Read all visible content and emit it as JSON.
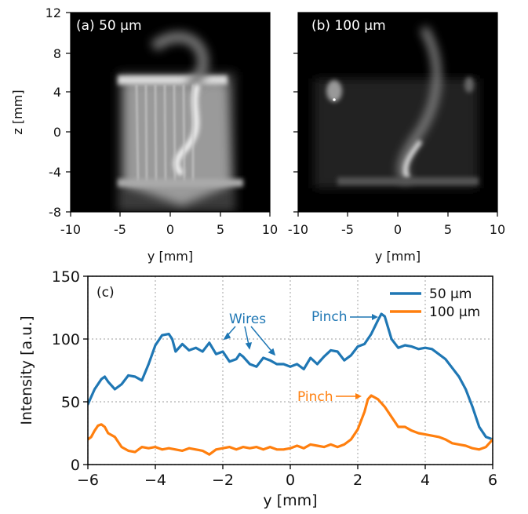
{
  "panels": {
    "a": {
      "label": "(a) 50 µm"
    },
    "b": {
      "label": "(b) 100 µm"
    },
    "image_axes": {
      "xlabel": "y [mm]",
      "ylabel": "z [mm]",
      "x_ticks": [
        "-10",
        "-5",
        "0",
        "5",
        "10"
      ],
      "y_ticks": [
        "12",
        "8",
        "4",
        "0",
        "-4",
        "-8"
      ]
    }
  },
  "chart_data": {
    "type": "line",
    "label": "(c)",
    "xlabel": "y [mm]",
    "ylabel": "Intensity [a.u.]",
    "xlim": [
      -6,
      6
    ],
    "ylim": [
      0,
      150
    ],
    "x_ticks": [
      -6,
      -4,
      -2,
      0,
      2,
      4,
      6
    ],
    "y_ticks": [
      0,
      50,
      100,
      150
    ],
    "x_tick_labels": [
      "−6",
      "−4",
      "−2",
      "0",
      "2",
      "4",
      "6"
    ],
    "y_tick_labels": [
      "0",
      "50",
      "100",
      "150"
    ],
    "grid": true,
    "legend_position": "top-right",
    "series": [
      {
        "name": "50 µm",
        "color": "#1f77b4",
        "x": [
          -6.0,
          -5.8,
          -5.6,
          -5.5,
          -5.4,
          -5.2,
          -5.0,
          -4.8,
          -4.6,
          -4.4,
          -4.2,
          -4.0,
          -3.8,
          -3.6,
          -3.5,
          -3.4,
          -3.2,
          -3.0,
          -2.8,
          -2.6,
          -2.4,
          -2.2,
          -2.0,
          -1.8,
          -1.6,
          -1.5,
          -1.4,
          -1.2,
          -1.0,
          -0.8,
          -0.6,
          -0.4,
          -0.2,
          0.0,
          0.2,
          0.4,
          0.6,
          0.8,
          1.0,
          1.2,
          1.4,
          1.6,
          1.8,
          2.0,
          2.2,
          2.4,
          2.6,
          2.7,
          2.8,
          3.0,
          3.2,
          3.4,
          3.6,
          3.8,
          4.0,
          4.2,
          4.4,
          4.6,
          4.8,
          5.0,
          5.2,
          5.4,
          5.6,
          5.8,
          6.0
        ],
        "values": [
          48,
          60,
          68,
          70,
          66,
          60,
          64,
          71,
          70,
          67,
          80,
          95,
          103,
          104,
          100,
          90,
          96,
          91,
          93,
          90,
          97,
          88,
          90,
          82,
          84,
          88,
          86,
          80,
          78,
          85,
          83,
          80,
          80,
          78,
          80,
          76,
          85,
          80,
          86,
          91,
          90,
          83,
          87,
          94,
          96,
          104,
          115,
          120,
          118,
          100,
          93,
          95,
          94,
          92,
          93,
          92,
          88,
          84,
          77,
          70,
          60,
          46,
          30,
          22,
          20
        ],
        "labels": [
          {
            "text": "Wires"
          },
          {
            "text": "Pinch"
          }
        ]
      },
      {
        "name": "100 µm",
        "color": "#ff7f0e",
        "x": [
          -6.0,
          -5.9,
          -5.8,
          -5.7,
          -5.6,
          -5.5,
          -5.4,
          -5.2,
          -5.0,
          -4.8,
          -4.6,
          -4.4,
          -4.2,
          -4.0,
          -3.8,
          -3.6,
          -3.4,
          -3.2,
          -3.0,
          -2.8,
          -2.6,
          -2.4,
          -2.2,
          -2.0,
          -1.8,
          -1.6,
          -1.4,
          -1.2,
          -1.0,
          -0.8,
          -0.6,
          -0.4,
          -0.2,
          0.0,
          0.2,
          0.4,
          0.6,
          0.8,
          1.0,
          1.2,
          1.4,
          1.6,
          1.8,
          2.0,
          2.2,
          2.3,
          2.4,
          2.6,
          2.8,
          3.0,
          3.2,
          3.4,
          3.6,
          3.8,
          4.0,
          4.2,
          4.4,
          4.6,
          4.8,
          5.0,
          5.2,
          5.4,
          5.6,
          5.8,
          6.0
        ],
        "values": [
          20,
          22,
          27,
          31,
          32,
          30,
          25,
          22,
          14,
          11,
          10,
          14,
          13,
          14,
          12,
          13,
          12,
          11,
          13,
          12,
          11,
          8,
          12,
          13,
          14,
          12,
          14,
          13,
          14,
          12,
          14,
          12,
          12,
          13,
          15,
          13,
          16,
          15,
          14,
          16,
          14,
          16,
          20,
          28,
          42,
          52,
          55,
          52,
          46,
          38,
          30,
          30,
          27,
          25,
          24,
          23,
          22,
          20,
          17,
          16,
          15,
          13,
          12,
          14,
          20
        ],
        "labels": [
          {
            "text": "Pinch"
          }
        ]
      }
    ]
  }
}
